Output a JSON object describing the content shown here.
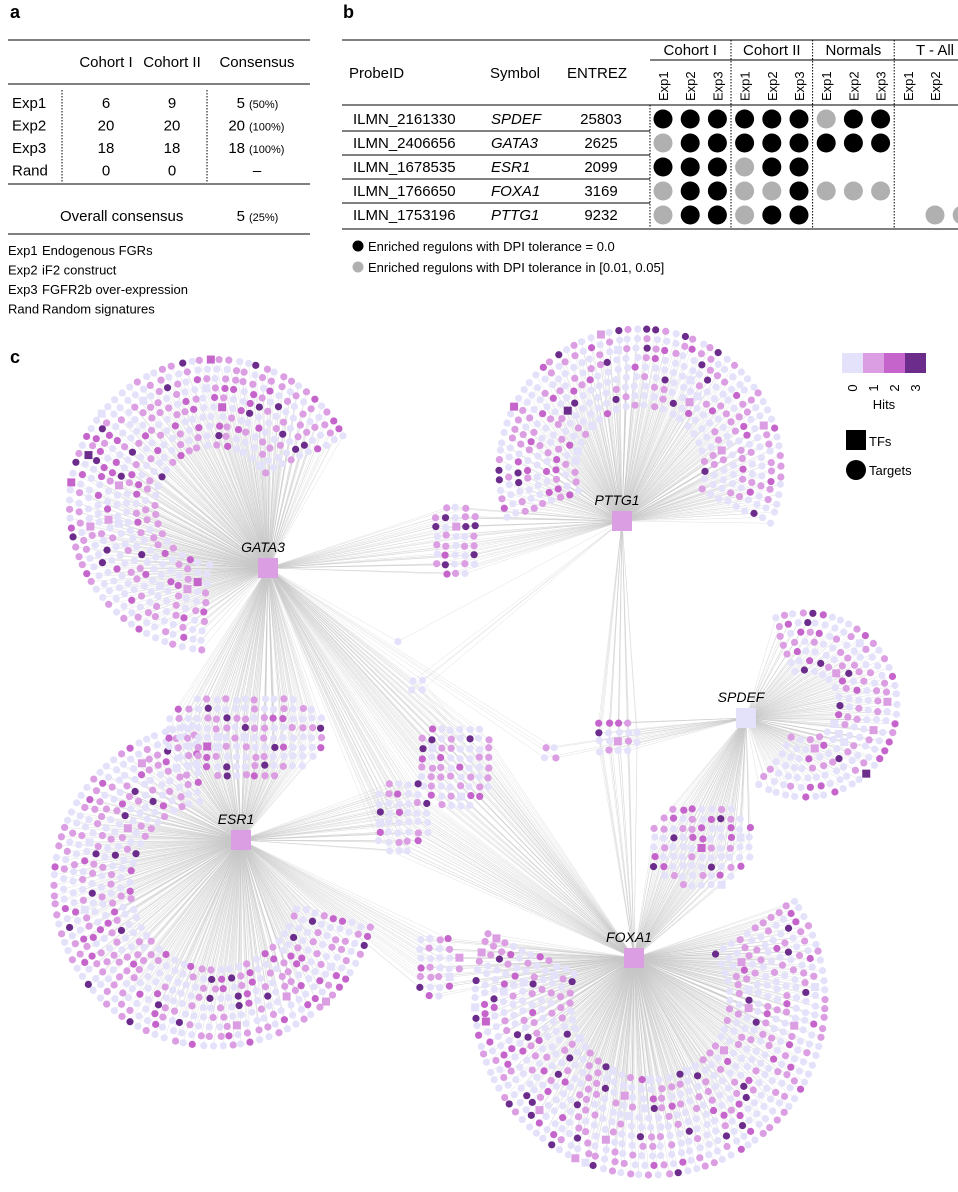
{
  "panel_a": {
    "label": "a",
    "headers": [
      "Cohort I",
      "Cohort II",
      "Consensus"
    ],
    "rows": [
      [
        "Exp1",
        6,
        9,
        5,
        "(50%)"
      ],
      [
        "Exp2",
        20,
        20,
        20,
        "(100%)"
      ],
      [
        "Exp3",
        18,
        18,
        18,
        "(100%)"
      ],
      [
        "Rand",
        0,
        0,
        "–"
      ]
    ],
    "overall": [
      "Overall consensus",
      5,
      "(25%)"
    ],
    "notes": [
      [
        "Exp1",
        "Endogenous FGRs"
      ],
      [
        "Exp2",
        "iF2 construct"
      ],
      [
        "Exp3",
        "FGFR2b over-expression"
      ],
      [
        "Rand",
        "Random signatures"
      ]
    ]
  },
  "panel_b": {
    "label": "b",
    "headers": [
      "ProbeID",
      "Symbol",
      "ENTREZ"
    ],
    "groups": [
      "Cohort I",
      "Cohort II",
      "Normals",
      "T - All"
    ],
    "subheaders": [
      "Exp1",
      "Exp2",
      "Exp3"
    ],
    "rows": [
      {
        "probe": "ILMN_2161330",
        "symbol": "SPDEF",
        "entrez": 25803,
        "dots": [
          0,
          0,
          0,
          0,
          0,
          0,
          1,
          0,
          0,
          null,
          null,
          null
        ]
      },
      {
        "probe": "ILMN_2406656",
        "symbol": "GATA3",
        "entrez": 2625,
        "dots": [
          1,
          0,
          0,
          0,
          0,
          0,
          0,
          0,
          0,
          null,
          null,
          null
        ]
      },
      {
        "probe": "ILMN_1678535",
        "symbol": "ESR1",
        "entrez": 2099,
        "dots": [
          0,
          0,
          0,
          1,
          0,
          0,
          null,
          null,
          null,
          null,
          null,
          null
        ]
      },
      {
        "probe": "ILMN_1766650",
        "symbol": "FOXA1",
        "entrez": 3169,
        "dots": [
          1,
          0,
          0,
          1,
          1,
          0,
          1,
          1,
          1,
          null,
          null,
          null
        ]
      },
      {
        "probe": "ILMN_1753196",
        "symbol": "PTTG1",
        "entrez": 9232,
        "dots": [
          1,
          0,
          0,
          1,
          0,
          0,
          null,
          null,
          null,
          null,
          1,
          1
        ]
      }
    ],
    "dot_legend": [
      {
        "color": "#000000",
        "label": "Enriched regulons with DPI tolerance = 0.0"
      },
      {
        "color": "#b0b0b0",
        "label": "Enriched regulons with DPI tolerance in [0.01, 0.05]"
      }
    ]
  },
  "panel_c": {
    "label": "c",
    "hits_title": "Hits",
    "hits": [
      0,
      1,
      2,
      3
    ],
    "hit_colors": [
      "#e4e2fa",
      "#dc9ee2",
      "#c565cc",
      "#6b2c8c"
    ],
    "shape_legend": [
      "TFs",
      "Targets"
    ],
    "hubs": [
      {
        "name": "GATA3",
        "hits": 1
      },
      {
        "name": "PTTG1",
        "hits": 1
      },
      {
        "name": "SPDEF",
        "hits": 0
      },
      {
        "name": "ESR1",
        "hits": 1
      },
      {
        "name": "FOXA1",
        "hits": 1
      }
    ]
  }
}
